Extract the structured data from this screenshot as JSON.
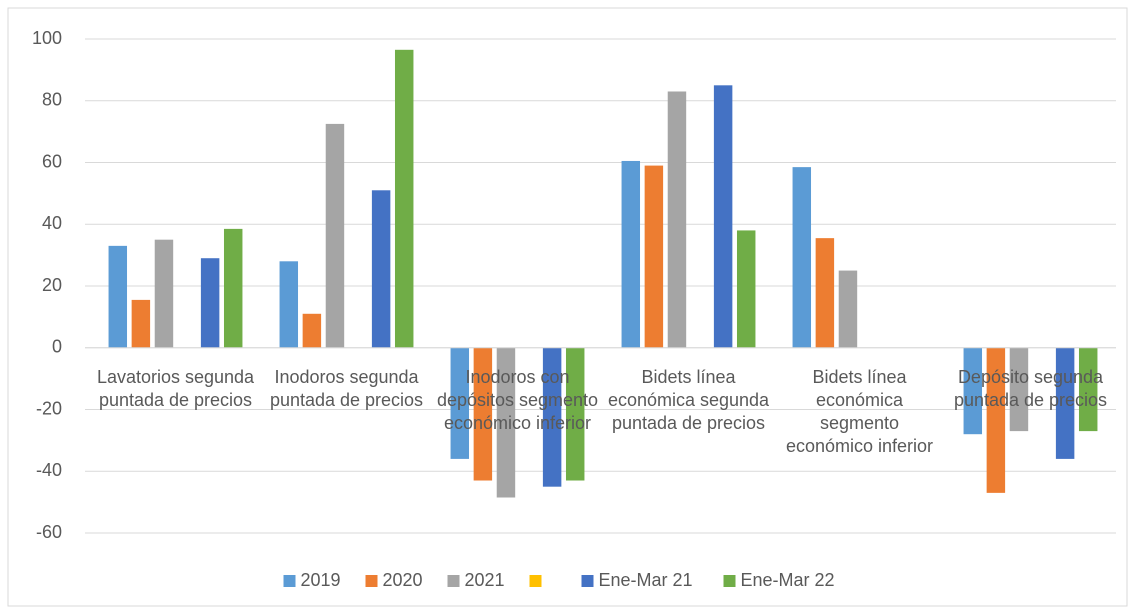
{
  "chart_data": {
    "type": "bar",
    "categories": [
      "Lavatorios segunda puntada de precios",
      "Inodoros segunda puntada de precios",
      "Inodoros con depósitos segmento económico inferior",
      "Bidets línea económica segunda puntada de precios",
      "Bidets línea económica segmento económico inferior",
      "Depósito segunda puntada de precios"
    ],
    "series": [
      {
        "name": "2019",
        "color": "#5b9bd5",
        "values": [
          33,
          28,
          -36,
          60.5,
          58.5,
          -28
        ]
      },
      {
        "name": "2020",
        "color": "#ed7d31",
        "values": [
          15.5,
          11,
          -43,
          59,
          35.5,
          -47
        ]
      },
      {
        "name": "2021",
        "color": "#a5a5a5",
        "values": [
          35,
          72.5,
          -48.5,
          83,
          25,
          -27
        ]
      },
      {
        "color": "#ffc000",
        "values": [
          null,
          null,
          null,
          null,
          null,
          null
        ]
      },
      {
        "name": "Ene-Mar 21",
        "color": "#4472c4",
        "values": [
          29,
          51,
          -45,
          85,
          null,
          -36
        ]
      },
      {
        "name": "Ene-Mar 22",
        "color": "#70ad47",
        "values": [
          38.5,
          96.5,
          -43,
          38,
          null,
          -27
        ]
      }
    ],
    "ylim": [
      -60,
      100
    ],
    "yticks": [
      -60,
      -40,
      -20,
      0,
      20,
      40,
      60,
      80,
      100
    ],
    "grid": true,
    "legend": "bottom"
  }
}
